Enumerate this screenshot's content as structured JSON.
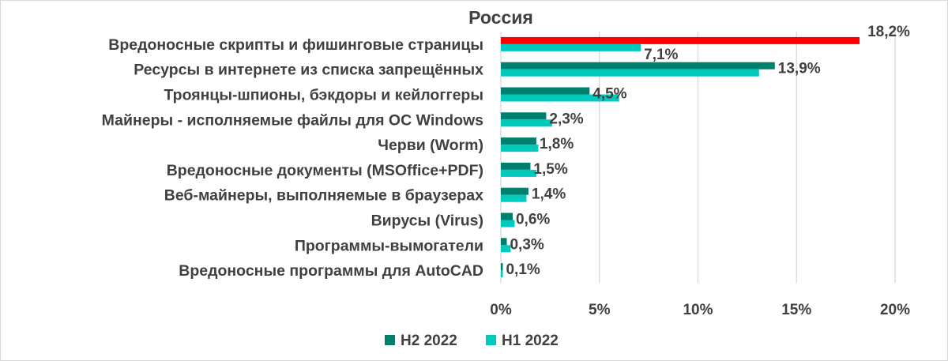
{
  "chart_data": {
    "type": "bar",
    "orientation": "horizontal",
    "title": "Россия",
    "categories": [
      "Вредоносные скрипты и фишинговые страницы",
      "Ресурсы в интернете из списка запрещённых",
      "Троянцы-шпионы, бэкдоры и кейлоггеры",
      "Майнеры - исполняемые файлы для ОС Windows",
      "Черви (Worm)",
      "Вредоносные документы (MSOffice+PDF)",
      "Веб-майнеры, выполняемые в браузерах",
      "Вирусы (Virus)",
      "Программы-вымогатели",
      "Вредоносные программы для AutoCAD"
    ],
    "series": [
      {
        "name": "H2 2022",
        "color": "#007F6E",
        "highlight": {
          "index": 0,
          "color": "#FF0000"
        },
        "values": [
          18.2,
          13.9,
          4.5,
          2.3,
          1.8,
          1.5,
          1.4,
          0.6,
          0.3,
          0.1
        ],
        "labels": [
          "18,2%",
          "13,9%",
          "4,5%",
          "2,3%",
          "1,8%",
          "1,5%",
          "1,4%",
          "0,6%",
          "0,3%",
          "0,1%"
        ]
      },
      {
        "name": "H1 2022",
        "color": "#00C9BD",
        "values": [
          7.1,
          13.1,
          6.0,
          2.6,
          1.9,
          1.8,
          1.3,
          0.7,
          0.5,
          0.1
        ],
        "labels": [
          "7,1%",
          null,
          null,
          null,
          null,
          null,
          null,
          null,
          null,
          null
        ]
      }
    ],
    "xlim": [
      0,
      20
    ],
    "xticks": [
      "0%",
      "5%",
      "10%",
      "15%",
      "20%"
    ],
    "grid": true,
    "legend": "bottom"
  }
}
